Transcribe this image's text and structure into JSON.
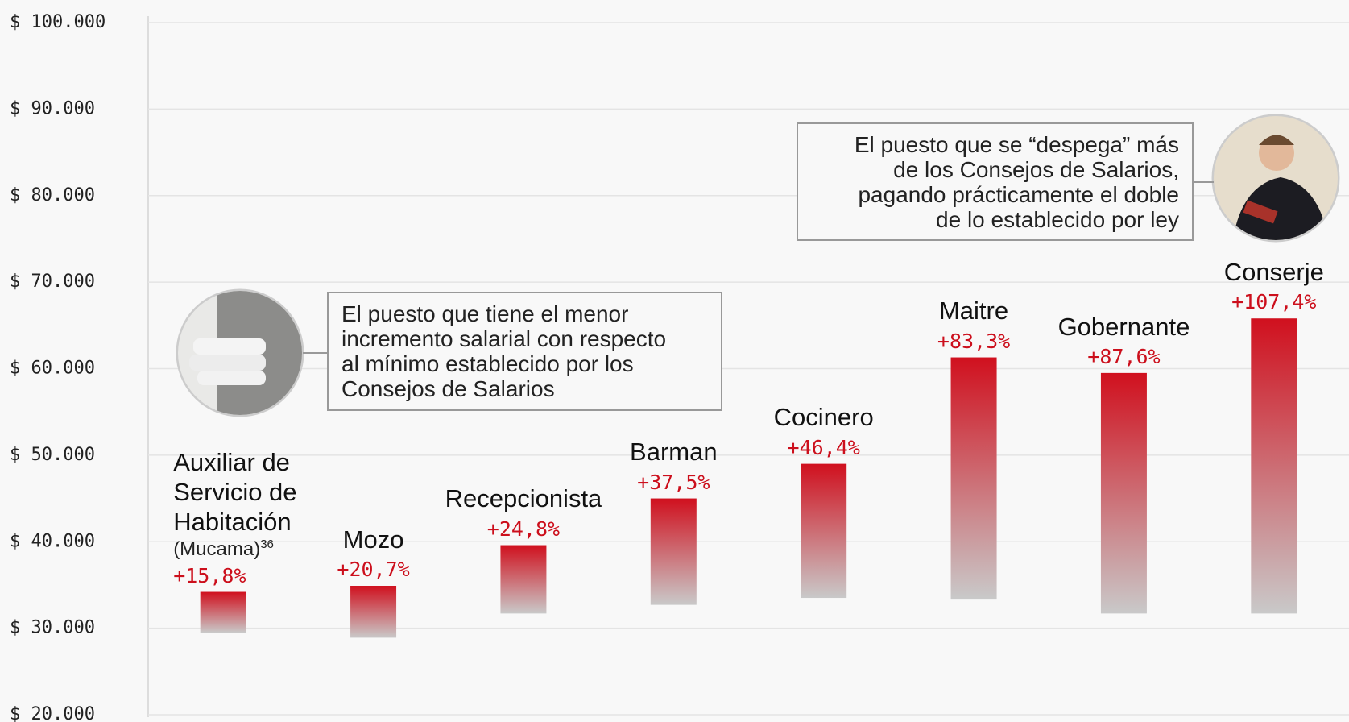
{
  "chart_data": {
    "type": "range-bar",
    "categories": [
      "Auxiliar de Servicio de Habitación",
      "Mozo",
      "Recepcionista",
      "Barman",
      "Cocinero",
      "Maitre",
      "Gobernante",
      "Conserje"
    ],
    "category_notes": [
      {
        "text": "(Mucama)",
        "footnote": "36"
      },
      null,
      null,
      null,
      null,
      null,
      null,
      null
    ],
    "low": [
      29500,
      28900,
      31700,
      32700,
      33500,
      33400,
      31700,
      31700
    ],
    "high": [
      34200,
      34900,
      39600,
      45000,
      49000,
      61300,
      59500,
      65800
    ],
    "change_labels": [
      "+15,8%",
      "+20,7%",
      "+24,8%",
      "+37,5%",
      "+46,4%",
      "+83,3%",
      "+87,6%",
      "+107,4%"
    ],
    "color_top": "#d0101e",
    "color_bottom": "#c9c9c9",
    "ylim": [
      20000,
      100000
    ],
    "yticks": [
      {
        "value": 20000,
        "label": "$ 20.000"
      },
      {
        "value": 30000,
        "label": "$ 30.000"
      },
      {
        "value": 40000,
        "label": "$ 40.000"
      },
      {
        "value": 50000,
        "label": "$ 50.000"
      },
      {
        "value": 60000,
        "label": "$ 60.000"
      },
      {
        "value": 70000,
        "label": "$ 70.000"
      },
      {
        "value": 80000,
        "label": "$ 80.000"
      },
      {
        "value": 90000,
        "label": "$ 90.000"
      },
      {
        "value": 100000,
        "label": "$ 100.000"
      }
    ],
    "grid": true,
    "annotations": [
      {
        "lines": [
          "El puesto que tiene el menor",
          "incremento salarial con respecto",
          "al mínimo establecido por los",
          "Consejos de Salarios"
        ]
      },
      {
        "lines": [
          "El puesto que se “despega” más",
          "de los Consejos de Salarios,",
          "pagando prácticamente el doble",
          "de lo establecido por ley"
        ]
      }
    ]
  }
}
